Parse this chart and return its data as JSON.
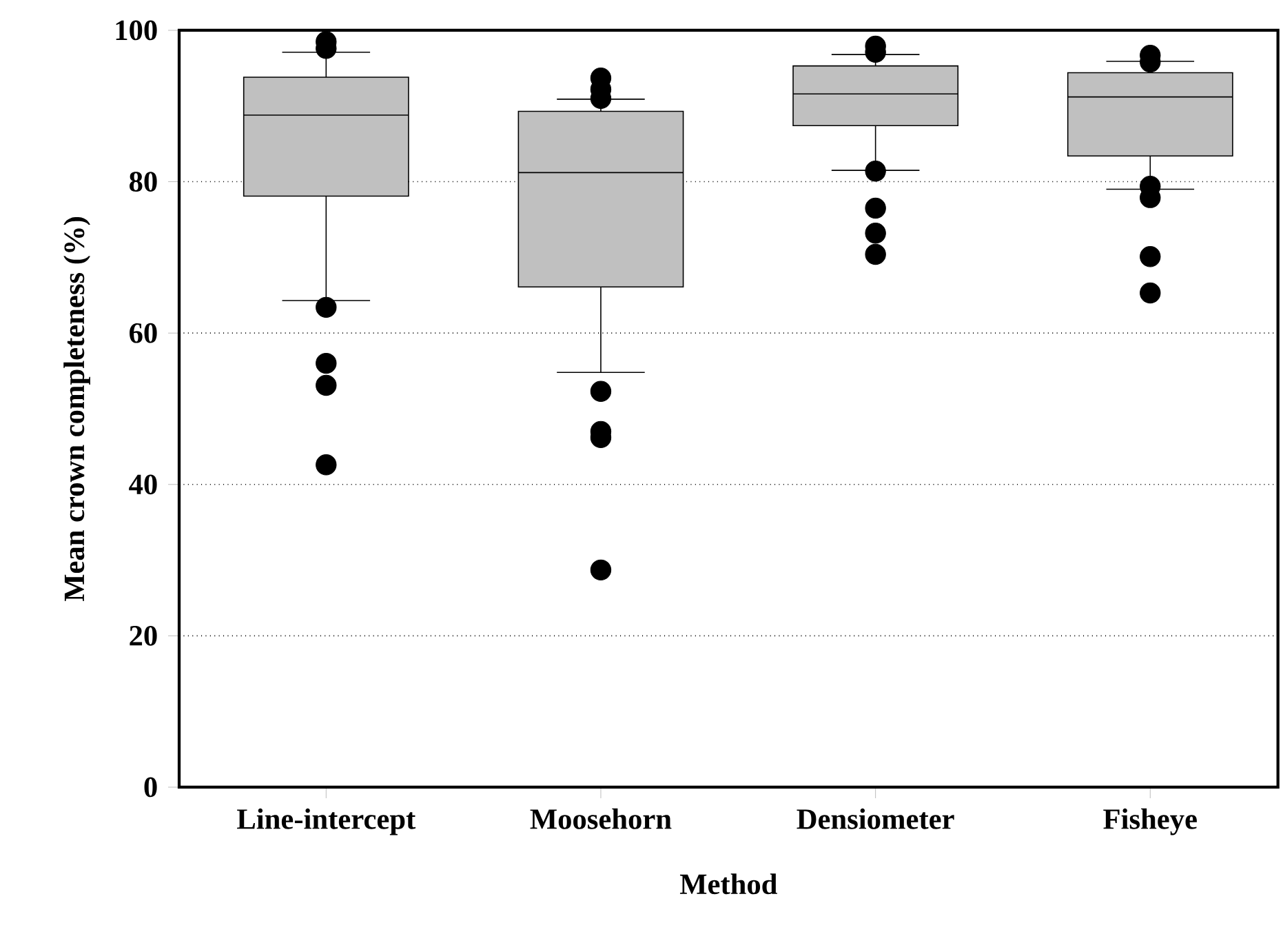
{
  "chart_data": {
    "type": "box",
    "xlabel": "Method",
    "ylabel": "Mean crown completeness (%)",
    "categories": [
      "Line-intercept",
      "Moosehorn",
      "Densiometer",
      "Fisheye"
    ],
    "series": [
      {
        "color": "#c0c0c0",
        "boxes": [
          {
            "low": 64.3,
            "q1": 78.1,
            "median": 88.8,
            "q3": 93.8,
            "high": 97.1,
            "outliers": [
              98.5,
              97.6,
              63.4,
              56.0,
              53.1,
              42.6
            ]
          },
          {
            "low": 54.8,
            "q1": 66.1,
            "median": 81.2,
            "q3": 89.3,
            "high": 90.9,
            "outliers": [
              93.7,
              92.2,
              91.0,
              52.3,
              47.0,
              46.2,
              28.7
            ]
          },
          {
            "low": 81.5,
            "q1": 87.4,
            "median": 91.6,
            "q3": 95.3,
            "high": 96.8,
            "outliers": [
              97.9,
              97.1,
              81.4,
              76.5,
              73.2,
              70.4
            ]
          },
          {
            "low": 79.0,
            "q1": 83.4,
            "median": 91.2,
            "q3": 94.4,
            "high": 95.9,
            "outliers": [
              96.7,
              95.8,
              79.4,
              77.9,
              70.1,
              65.3
            ]
          }
        ]
      }
    ],
    "ylim": [
      0,
      100
    ],
    "yticks": [
      0,
      20,
      40,
      60,
      80,
      100
    ],
    "grid": "y"
  }
}
